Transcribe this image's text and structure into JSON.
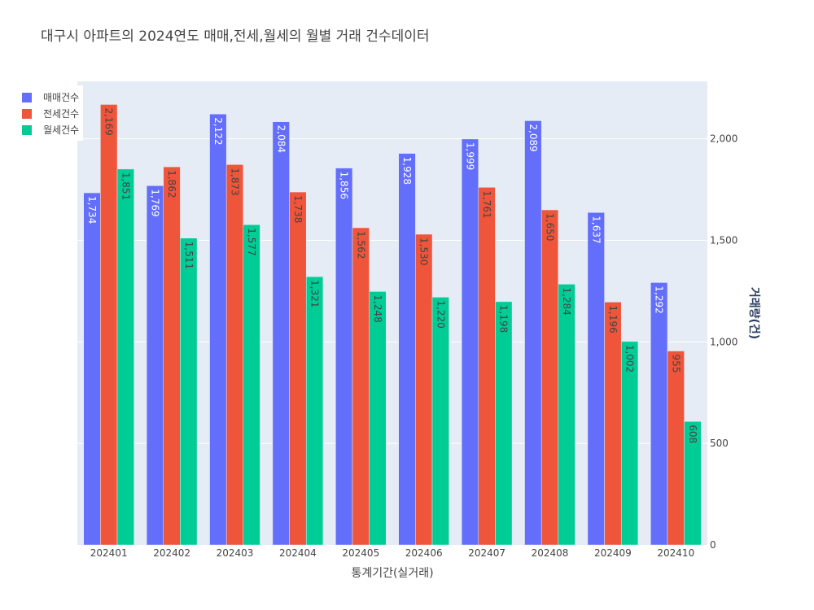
{
  "chart_data": {
    "type": "bar",
    "title": "대구시 아파트의 2024연도 매매,전세,월세의 월별 거래 건수데이터",
    "xlabel": "통계기간(실거래)",
    "ylabel": "거래량(건)",
    "categories": [
      "202401",
      "202402",
      "202403",
      "202404",
      "202405",
      "202406",
      "202407",
      "202408",
      "202409",
      "202410"
    ],
    "series": [
      {
        "name": "매매건수",
        "color": "#636efa",
        "label_color": "#ffffff",
        "values": [
          1734,
          1769,
          2122,
          2084,
          1856,
          1928,
          1999,
          2089,
          1637,
          1292
        ]
      },
      {
        "name": "전세건수",
        "color": "#ef553b",
        "label_color": "#444444",
        "values": [
          2169,
          1862,
          1873,
          1738,
          1562,
          1530,
          1761,
          1650,
          1196,
          955
        ]
      },
      {
        "name": "월세건수",
        "color": "#00cc96",
        "label_color": "#444444",
        "values": [
          1851,
          1511,
          1577,
          1321,
          1248,
          1220,
          1198,
          1284,
          1002,
          608
        ]
      }
    ],
    "ylim": [
      0,
      2283
    ],
    "yticks": [
      0,
      500,
      1000,
      1500,
      2000
    ],
    "yaxis_side": "right",
    "grid": true,
    "legend_position": "top-left",
    "plot_background": "#e5ecf6"
  }
}
